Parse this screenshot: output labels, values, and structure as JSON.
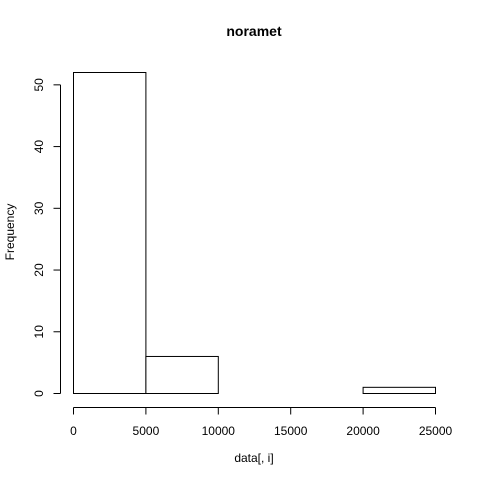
{
  "chart_data": {
    "type": "bar",
    "title": "noramet",
    "xlabel": "data[, i]",
    "ylabel": "Frequency",
    "bins": [
      {
        "x0": 0,
        "x1": 5000,
        "count": 52
      },
      {
        "x0": 5000,
        "x1": 10000,
        "count": 6
      },
      {
        "x0": 10000,
        "x1": 15000,
        "count": 0
      },
      {
        "x0": 15000,
        "x1": 20000,
        "count": 0
      },
      {
        "x0": 20000,
        "x1": 25000,
        "count": 1
      }
    ],
    "xticks": [
      "0",
      "5000",
      "10000",
      "15000",
      "20000",
      "25000"
    ],
    "yticks": [
      "0",
      "10",
      "20",
      "30",
      "40",
      "50"
    ],
    "xlim": [
      0,
      25000
    ],
    "ylim": [
      0,
      52
    ],
    "grid": false,
    "bar_fill": "#ffffff",
    "bar_stroke": "#000000"
  }
}
